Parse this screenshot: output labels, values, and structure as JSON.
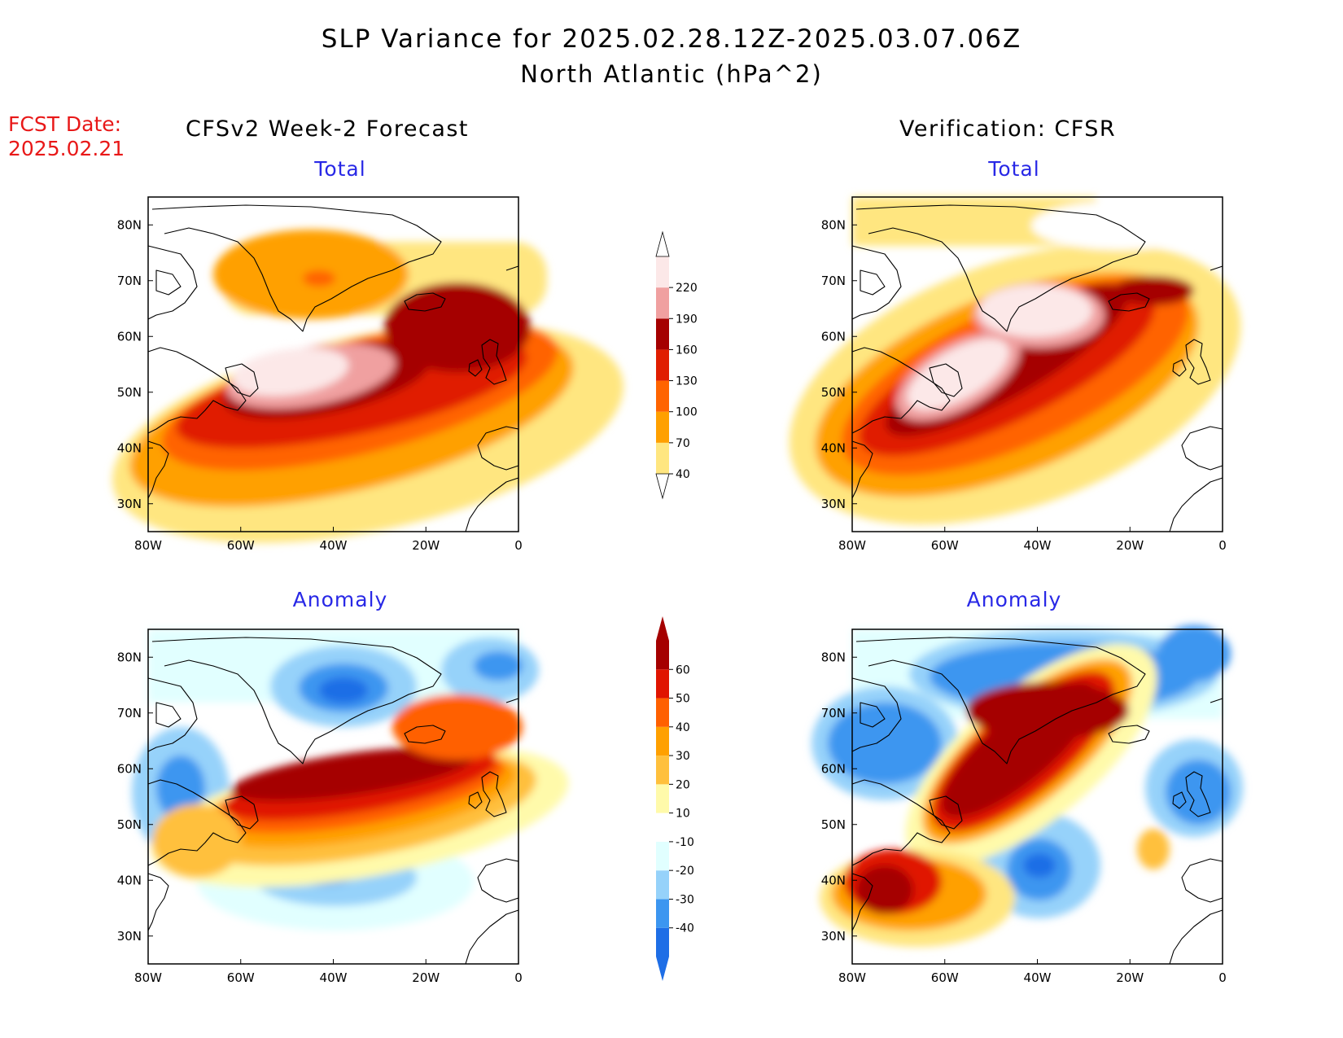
{
  "title": "SLP Variance for 2025.02.28.12Z-2025.03.07.06Z",
  "subtitle": "North Atlantic (hPa^2)",
  "fcst_label_line1": "FCST Date:",
  "fcst_label_line2": "2025.02.21",
  "left_header": "CFSv2 Week-2 Forecast",
  "right_header": "Verification: CFSR",
  "panels": {
    "forecast_total": {
      "title": "Total"
    },
    "verif_total": {
      "title": "Total"
    },
    "forecast_anomaly": {
      "title": "Anomaly"
    },
    "verif_anomaly": {
      "title": "Anomaly"
    }
  },
  "axes": {
    "lon_ticks": [
      "80W",
      "60W",
      "40W",
      "20W",
      "0"
    ],
    "lat_ticks": [
      "80N",
      "70N",
      "60N",
      "50N",
      "40N",
      "30N"
    ]
  },
  "colorbars": {
    "total": {
      "labels": [
        "40",
        "70",
        "100",
        "130",
        "160",
        "190",
        "220"
      ],
      "colors": [
        "#ffe680",
        "#ffa000",
        "#ff6400",
        "#e01e00",
        "#a50000",
        "#f0a0a0",
        "#fce8e8"
      ]
    },
    "anomaly": {
      "labels": [
        "-40",
        "-30",
        "-20",
        "-10",
        "10",
        "20",
        "30",
        "40",
        "50",
        "60"
      ],
      "colors": [
        "#1e6ee6",
        "#3c96f0",
        "#96d2fa",
        "#e1ffff",
        "#ffffff",
        "#fffaaa",
        "#ffc03c",
        "#ffa000",
        "#ff6000",
        "#e01400",
        "#a50000"
      ]
    }
  }
}
